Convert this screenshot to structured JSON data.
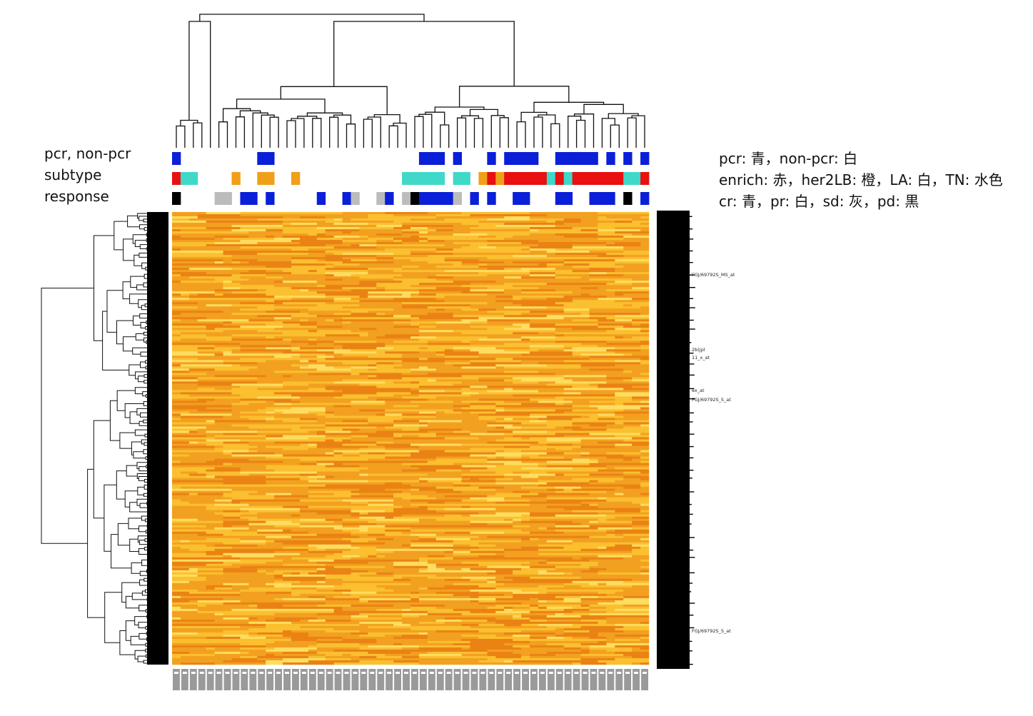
{
  "chart_data": {
    "type": "heatmap",
    "title": "",
    "xlabel": "",
    "ylabel": "",
    "n_columns": 56,
    "annotation_tracks": [
      {
        "name": "pcr, non-pcr",
        "values": [
          "pcr",
          "non-pcr",
          "non-pcr",
          "non-pcr",
          "non-pcr",
          "non-pcr",
          "non-pcr",
          "non-pcr",
          "non-pcr",
          "non-pcr",
          "pcr",
          "pcr",
          "non-pcr",
          "non-pcr",
          "non-pcr",
          "non-pcr",
          "non-pcr",
          "non-pcr",
          "non-pcr",
          "non-pcr",
          "non-pcr",
          "non-pcr",
          "non-pcr",
          "non-pcr",
          "non-pcr",
          "non-pcr",
          "non-pcr",
          "non-pcr",
          "non-pcr",
          "pcr",
          "pcr",
          "pcr",
          "non-pcr",
          "pcr",
          "non-pcr",
          "non-pcr",
          "non-pcr",
          "pcr",
          "non-pcr",
          "pcr",
          "pcr",
          "pcr",
          "pcr",
          "non-pcr",
          "non-pcr",
          "pcr",
          "pcr",
          "pcr",
          "pcr",
          "pcr",
          "non-pcr",
          "pcr",
          "non-pcr",
          "pcr",
          "non-pcr",
          "pcr"
        ]
      },
      {
        "name": "subtype",
        "values": [
          "enrich",
          "TN",
          "TN",
          "LA",
          "LA",
          "LA",
          "LA",
          "her2LB",
          "LA",
          "LA",
          "her2LB",
          "her2LB",
          "LA",
          "LA",
          "her2LB",
          "LA",
          "LA",
          "LA",
          "LA",
          "LA",
          "LA",
          "LA",
          "LA",
          "LA",
          "LA",
          "LA",
          "LA",
          "TN",
          "TN",
          "TN",
          "TN",
          "TN",
          "LA",
          "TN",
          "TN",
          "LA",
          "her2LB",
          "enrich",
          "her2LB",
          "enrich",
          "enrich",
          "enrich",
          "enrich",
          "enrich",
          "TN",
          "enrich",
          "TN",
          "enrich",
          "enrich",
          "enrich",
          "enrich",
          "enrich",
          "enrich",
          "TN",
          "TN",
          "enrich"
        ]
      },
      {
        "name": "response",
        "values": [
          "pd",
          "pr",
          "pr",
          "pr",
          "pr",
          "sd",
          "sd",
          "pr",
          "cr",
          "cr",
          "pr",
          "cr",
          "pr",
          "pr",
          "pr",
          "pr",
          "pr",
          "cr",
          "pr",
          "pr",
          "cr",
          "sd",
          "pr",
          "pr",
          "sd",
          "cr",
          "pr",
          "sd",
          "pd",
          "cr",
          "cr",
          "cr",
          "cr",
          "sd",
          "pr",
          "cr",
          "pr",
          "cr",
          "pr",
          "pr",
          "cr",
          "cr",
          "pr",
          "pr",
          "pr",
          "cr",
          "cr",
          "pr",
          "pr",
          "cr",
          "cr",
          "cr",
          "pr",
          "pd",
          "pr",
          "cr"
        ]
      }
    ],
    "legend": {
      "pcr": "pcr: 青，non-pcr: 白",
      "subtype": "enrich: 赤，her2LB: 橙，LA: 白，TN: 水色",
      "response": "cr: 青，pr: 白，sd: 灰，pd: 黒"
    },
    "track_colors": {
      "pcr": "#0a1fd8",
      "non-pcr": "#ffffff",
      "enrich": "#e81010",
      "her2LB": "#f0a018",
      "LA": "#ffffff",
      "TN": "#40d8c8",
      "cr": "#0a1fd8",
      "pr": "#ffffff",
      "sd": "#bcbcbc",
      "pd": "#000000"
    },
    "heat_colors": [
      "#e87e12",
      "#f2a020",
      "#fbc431",
      "#ffe66a"
    ],
    "row_label_snippets": [
      "FGJ/69792S_MS_at",
      "2b(jpl",
      "11_x_at",
      "ex_at",
      "FGJ/69792S_S_at",
      "FGJ/69792S_S_at"
    ]
  }
}
